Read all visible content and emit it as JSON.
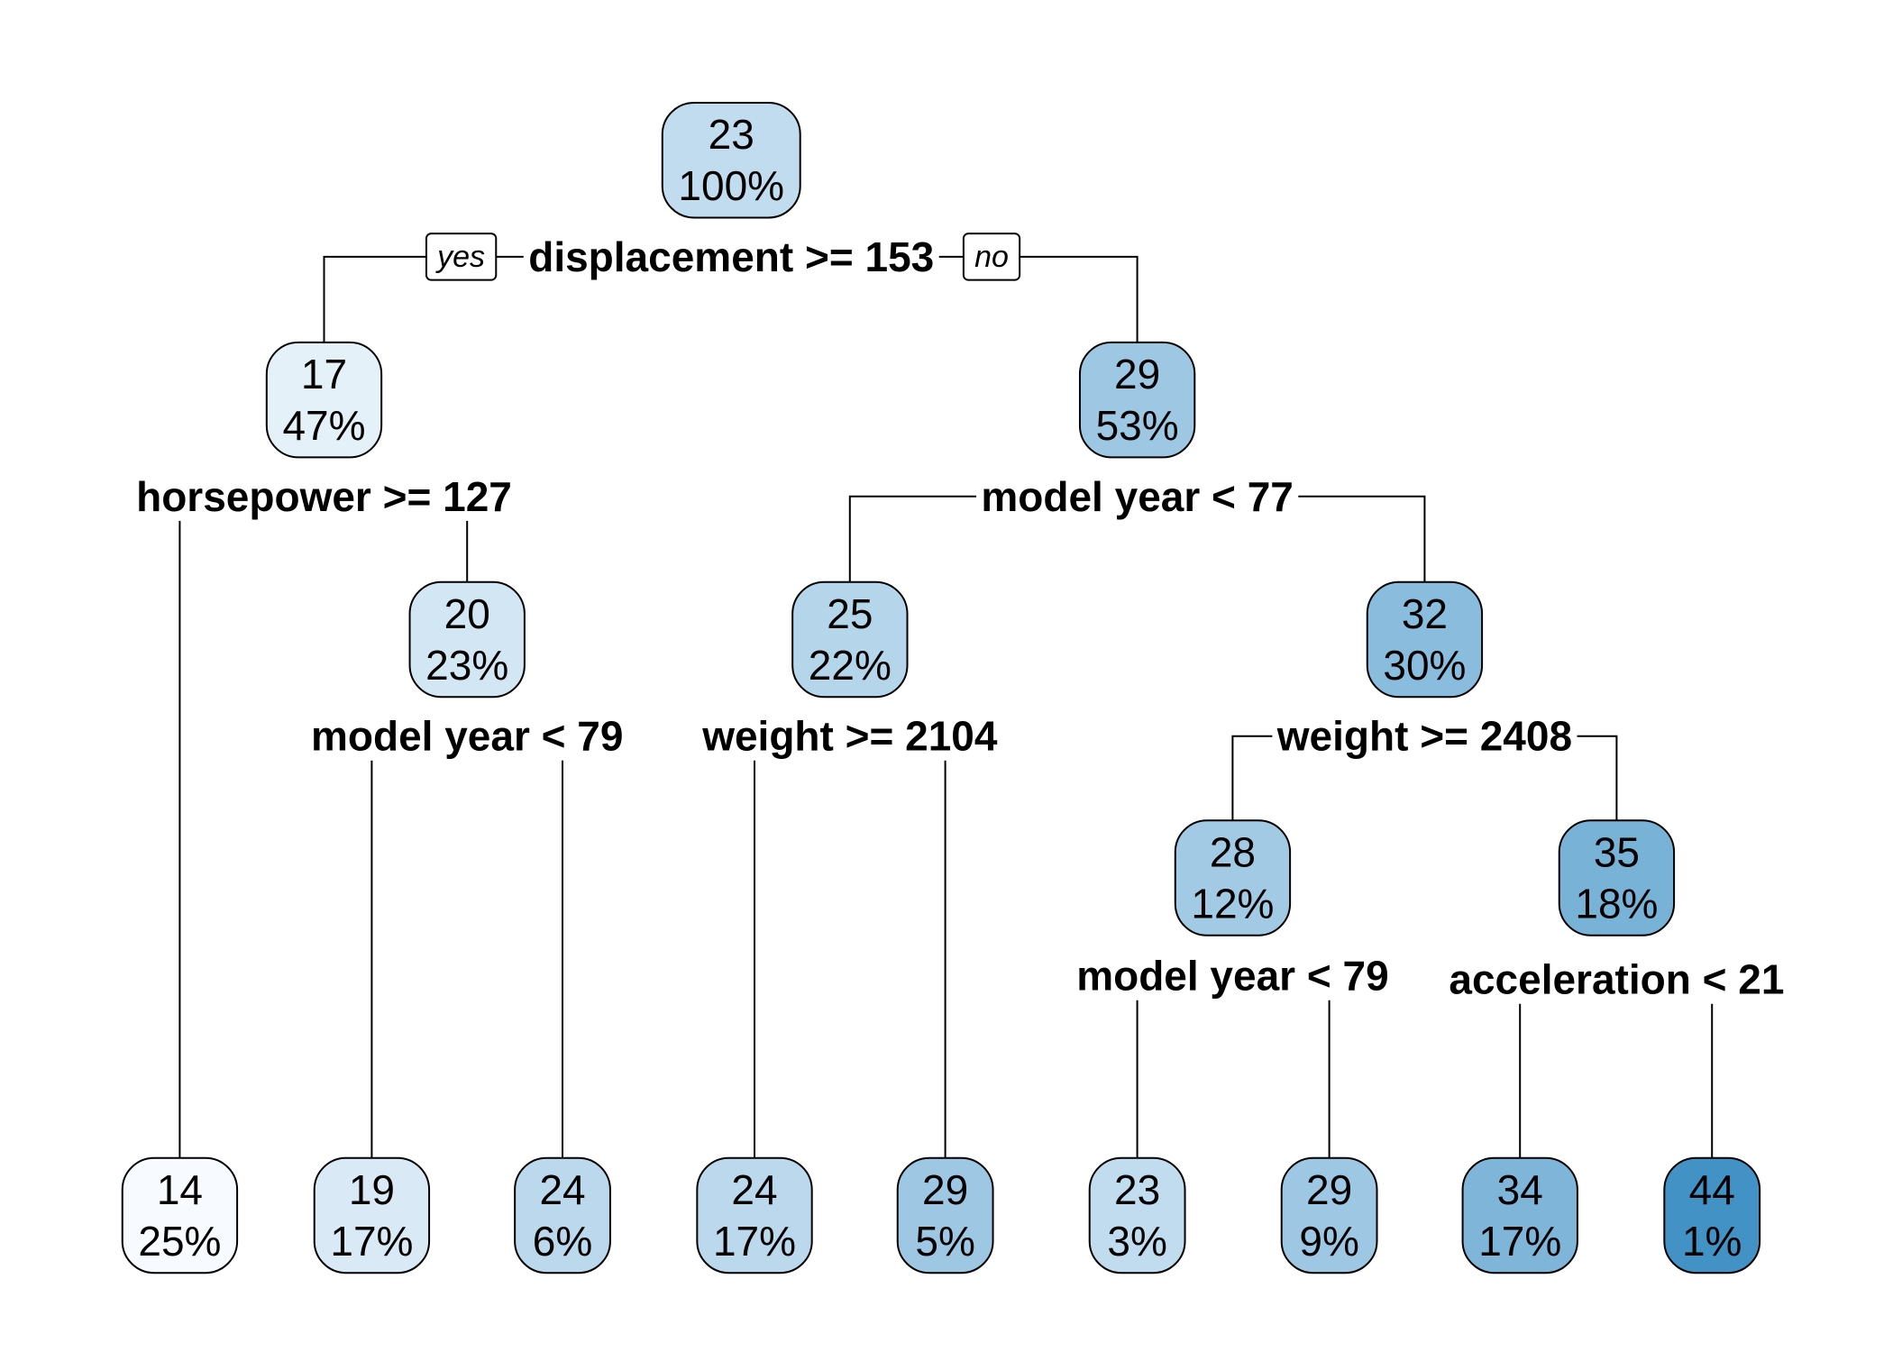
{
  "diagram": {
    "color_scale": {
      "low": "#f7fbff",
      "high": "#4292c6",
      "min_value": 14,
      "max_value": 44
    },
    "branch_labels": {
      "left": "yes",
      "right": "no"
    },
    "nodes": [
      {
        "id": "n1",
        "value": "23",
        "percent": "100%",
        "split": "displacement >= 153",
        "parent": null
      },
      {
        "id": "n2",
        "value": "17",
        "percent": "47%",
        "split": "horsepower >= 127",
        "parent": "n1"
      },
      {
        "id": "n3",
        "value": "29",
        "percent": "53%",
        "split": "model year < 77",
        "parent": "n1"
      },
      {
        "id": "n4",
        "value": "14",
        "percent": "25%",
        "split": "",
        "parent": "n2"
      },
      {
        "id": "n5",
        "value": "20",
        "percent": "23%",
        "split": "model year < 79",
        "parent": "n2"
      },
      {
        "id": "n10",
        "value": "19",
        "percent": "17%",
        "split": "",
        "parent": "n5"
      },
      {
        "id": "n11",
        "value": "24",
        "percent": "6%",
        "split": "",
        "parent": "n5"
      },
      {
        "id": "n6",
        "value": "25",
        "percent": "22%",
        "split": "weight >= 2104",
        "parent": "n3"
      },
      {
        "id": "n7",
        "value": "32",
        "percent": "30%",
        "split": "weight >= 2408",
        "parent": "n3"
      },
      {
        "id": "n12",
        "value": "24",
        "percent": "17%",
        "split": "",
        "parent": "n6"
      },
      {
        "id": "n13",
        "value": "29",
        "percent": "5%",
        "split": "",
        "parent": "n6"
      },
      {
        "id": "n14",
        "value": "28",
        "percent": "12%",
        "split": "model year < 79",
        "parent": "n7"
      },
      {
        "id": "n15",
        "value": "35",
        "percent": "18%",
        "split": "acceleration < 21",
        "parent": "n7"
      },
      {
        "id": "n28",
        "value": "23",
        "percent": "3%",
        "split": "",
        "parent": "n14"
      },
      {
        "id": "n29",
        "value": "29",
        "percent": "9%",
        "split": "",
        "parent": "n14"
      },
      {
        "id": "n30",
        "value": "34",
        "percent": "17%",
        "split": "",
        "parent": "n15"
      },
      {
        "id": "n31",
        "value": "44",
        "percent": "1%",
        "split": "",
        "parent": "n15"
      }
    ]
  }
}
